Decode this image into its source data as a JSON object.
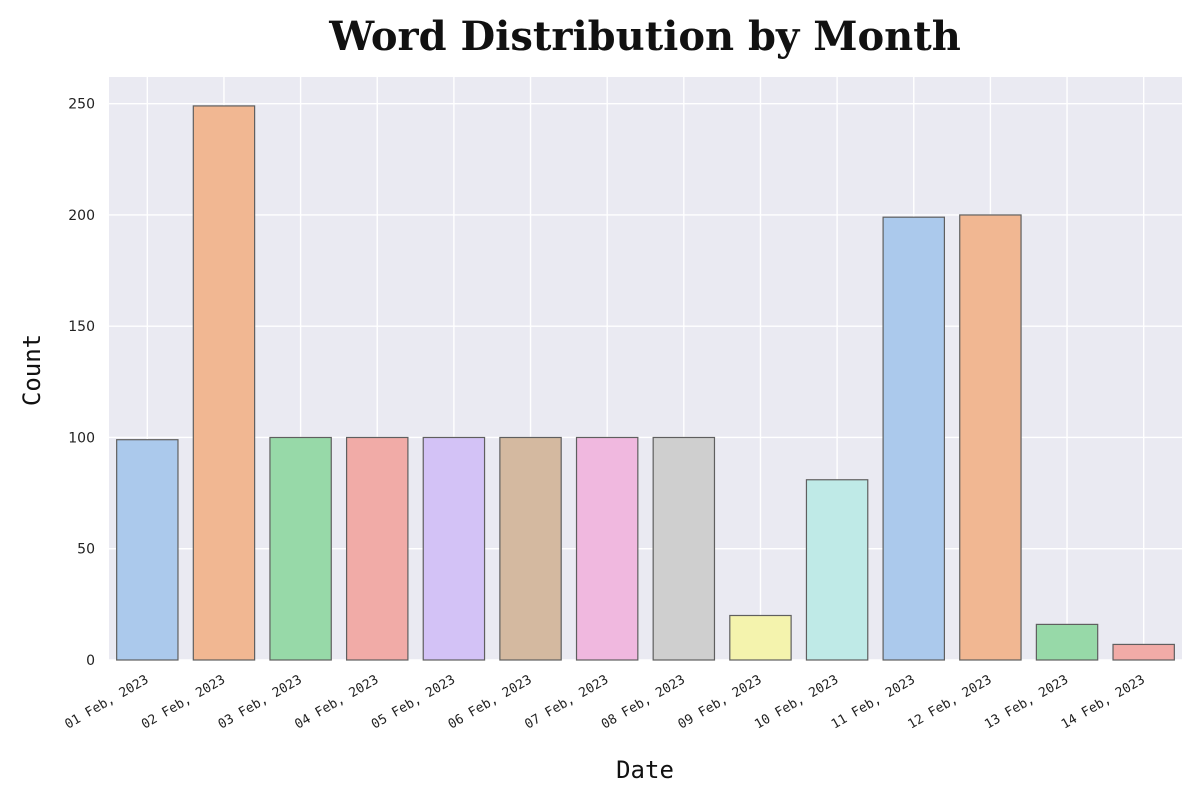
{
  "chart_data": {
    "type": "bar",
    "title": "Word Distribution by Month",
    "xlabel": "Date",
    "ylabel": "Count",
    "ylim": [
      0,
      262
    ],
    "yticks": [
      0,
      50,
      100,
      150,
      200,
      250
    ],
    "grid": true,
    "categories": [
      "01 Feb, 2023",
      "02 Feb, 2023",
      "03 Feb, 2023",
      "04 Feb, 2023",
      "05 Feb, 2023",
      "06 Feb, 2023",
      "07 Feb, 2023",
      "08 Feb, 2023",
      "09 Feb, 2023",
      "10 Feb, 2023",
      "11 Feb, 2023",
      "12 Feb, 2023",
      "13 Feb, 2023",
      "14 Feb, 2023"
    ],
    "values": [
      99,
      249,
      100,
      100,
      100,
      100,
      100,
      100,
      20,
      81,
      199,
      200,
      16,
      7
    ],
    "colors": [
      "#abc9ec",
      "#f1b792",
      "#97d9a8",
      "#f1aba7",
      "#d3c2f6",
      "#d4b9a0",
      "#f0b8df",
      "#cfcfcf",
      "#f4f3ad",
      "#bfeae7",
      "#abc9ec",
      "#f1b792",
      "#97d9a8",
      "#f1aba7"
    ],
    "plot_background": "#eaeaf2"
  }
}
